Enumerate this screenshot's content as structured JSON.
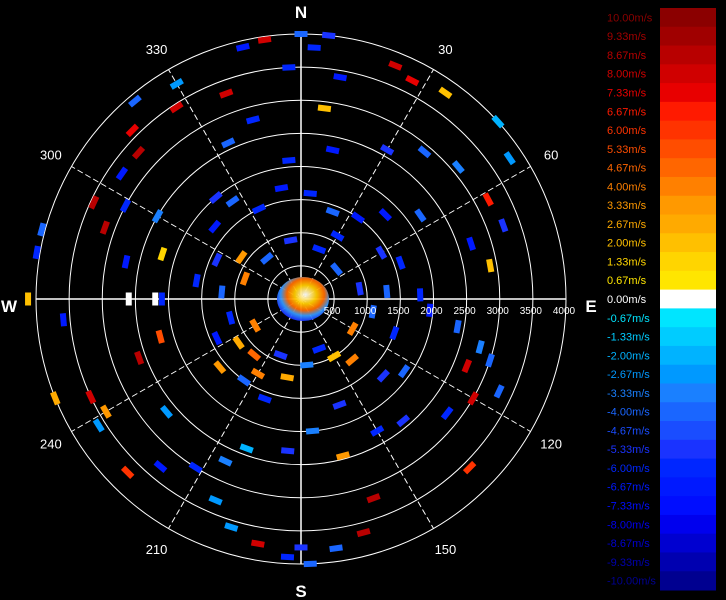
{
  "chart_data": {
    "type": "polar-scatter",
    "compass": {
      "north": "N",
      "east": "E",
      "south": "S",
      "west": "W"
    },
    "angle_ticks": [
      "30",
      "60",
      "120",
      "150",
      "210",
      "240",
      "300",
      "330"
    ],
    "angle_tick_values": [
      30,
      60,
      120,
      150,
      210,
      240,
      300,
      330
    ],
    "range_ticks": [
      "500",
      "1000",
      "1500",
      "2000",
      "2500",
      "3000",
      "3500",
      "4000"
    ],
    "range_tick_values": [
      500,
      1000,
      1500,
      2000,
      2500,
      3000,
      3500,
      4000
    ],
    "rlim": [
      0,
      4000
    ],
    "grid": true,
    "legend": {
      "placement": "right",
      "labels": [
        "10.00m/s",
        "9.33m/s",
        "8.67m/s",
        "8.00m/s",
        "7.33m/s",
        "6.67m/s",
        "6.00m/s",
        "5.33m/s",
        "4.67m/s",
        "4.00m/s",
        "3.33m/s",
        "2.67m/s",
        "2.00m/s",
        "1.33m/s",
        "0.67m/s",
        "0.00m/s",
        "-0.67m/s",
        "-1.33m/s",
        "-2.00m/s",
        "-2.67m/s",
        "-3.33m/s",
        "-4.00m/s",
        "-4.67m/s",
        "-5.33m/s",
        "-6.00m/s",
        "-6.67m/s",
        "-7.33m/s",
        "-8.00m/s",
        "-8.67m/s",
        "-9.33m/s",
        "-10.00m/s"
      ],
      "colors": [
        "#8b0000",
        "#a00000",
        "#b80000",
        "#d00000",
        "#e80000",
        "#ff1a00",
        "#ff3300",
        "#ff4d00",
        "#ff6600",
        "#ff8000",
        "#ff9900",
        "#ffaa00",
        "#ffc000",
        "#ffd500",
        "#ffe600",
        "#ffffff",
        "#00e5ff",
        "#00ccff",
        "#00b3ff",
        "#0099ff",
        "#1a80ff",
        "#1a66ff",
        "#1a4dff",
        "#1a33ff",
        "#0026ff",
        "#0019ff",
        "#000dff",
        "#0000ee",
        "#0000d0",
        "#0000b0",
        "#000090"
      ]
    },
    "points": [
      {
        "az": 0,
        "r": 4000,
        "v": -4.0
      },
      {
        "az": 3,
        "r": 3800,
        "v": -6.0
      },
      {
        "az": 6,
        "r": 4000,
        "v": -5.3
      },
      {
        "az": -8,
        "r": 3950,
        "v": 8.0
      },
      {
        "az": -13,
        "r": 3900,
        "v": -6.7
      },
      {
        "az": 10,
        "r": 3400,
        "v": -6.7
      },
      {
        "az": 22,
        "r": 3800,
        "v": 8.0
      },
      {
        "az": 27,
        "r": 3700,
        "v": 7.3
      },
      {
        "az": 35,
        "r": 3800,
        "v": 2.0
      },
      {
        "az": 48,
        "r": 4000,
        "v": -2.0
      },
      {
        "az": 56,
        "r": 3800,
        "v": -2.7
      },
      {
        "az": -3,
        "r": 3500,
        "v": -6.0
      },
      {
        "az": 7,
        "r": 2900,
        "v": 2.0
      },
      {
        "az": -20,
        "r": 3300,
        "v": 8.0
      },
      {
        "az": -33,
        "r": 3450,
        "v": 8.0
      },
      {
        "az": -30,
        "r": 3750,
        "v": -2.7
      },
      {
        "az": -40,
        "r": 3900,
        "v": -4.0
      },
      {
        "az": -45,
        "r": 3600,
        "v": 7.3
      },
      {
        "az": -48,
        "r": 3300,
        "v": 8.7
      },
      {
        "az": -55,
        "r": 3300,
        "v": -6.7
      },
      {
        "az": -65,
        "r": 3450,
        "v": 8.7
      },
      {
        "az": -62,
        "r": 3000,
        "v": -6.0
      },
      {
        "az": -70,
        "r": 3150,
        "v": 8.7
      },
      {
        "az": -75,
        "r": 4050,
        "v": -4.0
      },
      {
        "az": -80,
        "r": 4050,
        "v": -6.0
      },
      {
        "az": -90,
        "r": 4120,
        "v": 2.0
      },
      {
        "az": -90,
        "r": 2600,
        "v": 0.0
      },
      {
        "az": -90,
        "r": 2200,
        "v": 0.0
      },
      {
        "az": -78,
        "r": 2700,
        "v": -6.7
      },
      {
        "az": -72,
        "r": 2200,
        "v": 1.3
      },
      {
        "az": -60,
        "r": 2500,
        "v": -3.3
      },
      {
        "az": -40,
        "r": 2000,
        "v": -5.3
      },
      {
        "az": -25,
        "r": 2600,
        "v": -4.0
      },
      {
        "az": -15,
        "r": 2800,
        "v": -6.0
      },
      {
        "az": -5,
        "r": 2100,
        "v": -6.0
      },
      {
        "az": 12,
        "r": 2300,
        "v": -6.7
      },
      {
        "az": 30,
        "r": 2600,
        "v": -5.3
      },
      {
        "az": 40,
        "r": 2900,
        "v": -4.0
      },
      {
        "az": 50,
        "r": 3100,
        "v": -3.3
      },
      {
        "az": 62,
        "r": 3200,
        "v": 6.7
      },
      {
        "az": 70,
        "r": 3250,
        "v": -5.3
      },
      {
        "az": 80,
        "r": 2900,
        "v": 2.0
      },
      {
        "az": 72,
        "r": 2700,
        "v": -6.7
      },
      {
        "az": 55,
        "r": 2200,
        "v": -4.0
      },
      {
        "az": 45,
        "r": 1800,
        "v": -6.7
      },
      {
        "az": 88,
        "r": 1800,
        "v": -6.0
      },
      {
        "az": 95,
        "r": 1950,
        "v": -6.7
      },
      {
        "az": 100,
        "r": 2400,
        "v": -4.0
      },
      {
        "az": 105,
        "r": 2800,
        "v": -3.3
      },
      {
        "az": 108,
        "r": 3000,
        "v": -4.0
      },
      {
        "az": 112,
        "r": 2700,
        "v": 8.0
      },
      {
        "az": 115,
        "r": 3300,
        "v": -4.0
      },
      {
        "az": 120,
        "r": 3000,
        "v": 8.0
      },
      {
        "az": 128,
        "r": 2800,
        "v": -6.0
      },
      {
        "az": 135,
        "r": 3600,
        "v": 6.0
      },
      {
        "az": 140,
        "r": 2400,
        "v": -5.3
      },
      {
        "az": 150,
        "r": 2300,
        "v": -6.0
      },
      {
        "az": 160,
        "r": 3200,
        "v": 8.7
      },
      {
        "az": 165,
        "r": 3650,
        "v": 8.7
      },
      {
        "az": 172,
        "r": 3800,
        "v": -4.0
      },
      {
        "az": 178,
        "r": 4000,
        "v": -4.0
      },
      {
        "az": 180,
        "r": 3750,
        "v": -5.3
      },
      {
        "az": 183,
        "r": 3900,
        "v": -6.0
      },
      {
        "az": 190,
        "r": 3750,
        "v": 8.0
      },
      {
        "az": 197,
        "r": 3600,
        "v": -2.7
      },
      {
        "az": 203,
        "r": 3300,
        "v": -2.7
      },
      {
        "az": 205,
        "r": 2700,
        "v": -3.3
      },
      {
        "az": 212,
        "r": 3000,
        "v": -6.0
      },
      {
        "az": 220,
        "r": 3300,
        "v": -6.7
      },
      {
        "az": 225,
        "r": 3700,
        "v": 6.0
      },
      {
        "az": 230,
        "r": 2650,
        "v": -2.7
      },
      {
        "az": 238,
        "r": 3600,
        "v": -2.7
      },
      {
        "az": 240,
        "r": 3400,
        "v": 3.3
      },
      {
        "az": 245,
        "r": 3500,
        "v": 8.0
      },
      {
        "az": 248,
        "r": 4000,
        "v": 2.7
      },
      {
        "az": 250,
        "r": 2600,
        "v": 8.7
      },
      {
        "az": 255,
        "r": 2200,
        "v": 5.3
      },
      {
        "az": 265,
        "r": 3600,
        "v": -6.7
      },
      {
        "az": 270,
        "r": 2100,
        "v": -6.0
      },
      {
        "az": 185,
        "r": 2300,
        "v": -5.3
      },
      {
        "az": 175,
        "r": 2000,
        "v": -3.3
      },
      {
        "az": 160,
        "r": 1700,
        "v": -5.3
      },
      {
        "az": 200,
        "r": 1600,
        "v": -6.0
      },
      {
        "az": 215,
        "r": 1500,
        "v": -4.0
      },
      {
        "az": 230,
        "r": 1600,
        "v": 3.3
      },
      {
        "az": 245,
        "r": 1400,
        "v": -6.7
      },
      {
        "az": 200,
        "r": 2400,
        "v": -2.0
      },
      {
        "az": 165,
        "r": 2450,
        "v": 3.3
      },
      {
        "az": 133,
        "r": 1700,
        "v": -5.3
      },
      {
        "az": 125,
        "r": 1900,
        "v": -4.0
      },
      {
        "az": 110,
        "r": 1500,
        "v": -6.0
      },
      {
        "az": 85,
        "r": 1300,
        "v": -4.0
      },
      {
        "az": 70,
        "r": 1600,
        "v": -6.0
      },
      {
        "az": 60,
        "r": 1400,
        "v": -5.3
      },
      {
        "az": 35,
        "r": 1500,
        "v": -6.7
      },
      {
        "az": 20,
        "r": 1400,
        "v": -4.0
      },
      {
        "az": 5,
        "r": 1600,
        "v": -6.0
      },
      {
        "az": -10,
        "r": 1700,
        "v": -6.7
      },
      {
        "az": -25,
        "r": 1500,
        "v": -6.0
      },
      {
        "az": -35,
        "r": 1800,
        "v": -4.0
      },
      {
        "az": -50,
        "r": 1700,
        "v": -6.7
      },
      {
        "az": -65,
        "r": 1400,
        "v": -5.3
      },
      {
        "az": -80,
        "r": 1600,
        "v": -6.0
      },
      {
        "az": -85,
        "r": 1200,
        "v": -4.0
      },
      {
        "az": -70,
        "r": 900,
        "v": 4.0
      },
      {
        "az": -40,
        "r": 800,
        "v": -4.0
      },
      {
        "az": -10,
        "r": 900,
        "v": -5.3
      },
      {
        "az": 20,
        "r": 800,
        "v": -6.0
      },
      {
        "az": 50,
        "r": 700,
        "v": -4.0
      },
      {
        "az": 80,
        "r": 900,
        "v": -5.3
      },
      {
        "az": 120,
        "r": 900,
        "v": 4.0
      },
      {
        "az": 160,
        "r": 800,
        "v": -6.0
      },
      {
        "az": 200,
        "r": 900,
        "v": -5.3
      },
      {
        "az": 240,
        "r": 800,
        "v": 4.0
      },
      {
        "az": 140,
        "r": 1200,
        "v": 4.0
      },
      {
        "az": 190,
        "r": 1200,
        "v": 2.7
      },
      {
        "az": 220,
        "r": 1100,
        "v": 4.7
      },
      {
        "az": 255,
        "r": 1100,
        "v": -6.0
      },
      {
        "az": 100,
        "r": 1100,
        "v": -4.0
      },
      {
        "az": 30,
        "r": 1100,
        "v": -6.0
      },
      {
        "az": -55,
        "r": 1100,
        "v": 3.3
      },
      {
        "az": 150,
        "r": 1000,
        "v": 2.0
      },
      {
        "az": 175,
        "r": 1000,
        "v": -3.3
      },
      {
        "az": 210,
        "r": 1300,
        "v": 4.0
      },
      {
        "az": 235,
        "r": 1150,
        "v": 2.7
      }
    ]
  }
}
